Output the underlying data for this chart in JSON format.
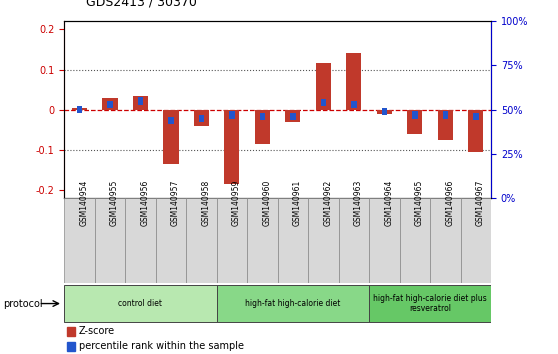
{
  "title": "GDS2413 / 30370",
  "samples": [
    "GSM140954",
    "GSM140955",
    "GSM140956",
    "GSM140957",
    "GSM140958",
    "GSM140959",
    "GSM140960",
    "GSM140961",
    "GSM140962",
    "GSM140963",
    "GSM140964",
    "GSM140965",
    "GSM140966",
    "GSM140967"
  ],
  "zscore": [
    0.005,
    0.028,
    0.033,
    -0.135,
    -0.04,
    -0.185,
    -0.085,
    -0.03,
    0.115,
    0.14,
    -0.01,
    -0.06,
    -0.075,
    -0.105
  ],
  "percentile": [
    0.5,
    0.53,
    0.55,
    0.44,
    0.45,
    0.47,
    0.46,
    0.46,
    0.54,
    0.53,
    0.49,
    0.47,
    0.47,
    0.46
  ],
  "ylim": [
    -0.22,
    0.22
  ],
  "yticks_left": [
    -0.2,
    -0.1,
    0.0,
    0.1,
    0.2
  ],
  "yticks_right": [
    0,
    25,
    50,
    75,
    100
  ],
  "bar_color_red": "#c0392b",
  "bar_color_blue": "#2255cc",
  "dotted_line_color": "#555555",
  "zero_line_color": "#cc0000",
  "bar_width": 0.5,
  "blue_bar_width": 0.18,
  "background_color": "#ffffff",
  "tick_color_left": "#cc0000",
  "tick_color_right": "#0000cc",
  "sample_bg": "#d8d8d8",
  "group1_color": "#b8e8b0",
  "group2_color": "#88d888",
  "group3_color": "#66c866"
}
